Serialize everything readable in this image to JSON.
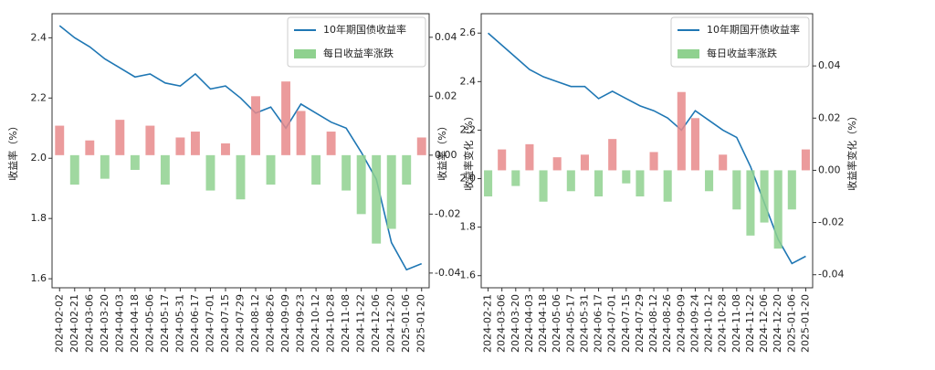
{
  "chart_data": [
    {
      "type": "combo",
      "ylabel": "收益率（%）",
      "y2label": "收益率变化（%）",
      "categories": [
        "2024-02-02",
        "2024-02-21",
        "2024-03-06",
        "2024-03-20",
        "2024-04-03",
        "2024-04-18",
        "2024-05-06",
        "2024-05-17",
        "2024-05-31",
        "2024-06-17",
        "2024-07-01",
        "2024-07-15",
        "2024-07-29",
        "2024-08-12",
        "2024-08-26",
        "2024-09-09",
        "2024-09-23",
        "2024-10-12",
        "2024-10-28",
        "2024-11-08",
        "2024-11-22",
        "2024-12-06",
        "2024-12-20",
        "2025-01-06",
        "2025-01-20"
      ],
      "series": [
        {
          "name": "10年期国债收益率",
          "color": "#1f77b4",
          "values": [
            2.44,
            2.4,
            2.37,
            2.33,
            2.3,
            2.27,
            2.28,
            2.25,
            2.24,
            2.28,
            2.23,
            2.24,
            2.2,
            2.15,
            2.17,
            2.1,
            2.18,
            2.15,
            2.12,
            2.1,
            2.02,
            1.93,
            1.72,
            1.63,
            1.65
          ]
        },
        {
          "name": "每日收益率涨跌",
          "axis": "y2",
          "up_color": "#e8898b",
          "down_color": "#8fd18f",
          "values": [
            0.01,
            -0.01,
            0.005,
            -0.008,
            0.012,
            -0.005,
            0.01,
            -0.01,
            0.006,
            0.008,
            -0.012,
            0.004,
            -0.015,
            0.02,
            -0.01,
            0.025,
            0.015,
            -0.01,
            0.008,
            -0.012,
            -0.02,
            -0.03,
            -0.025,
            -0.01,
            0.006
          ]
        }
      ],
      "ylim": [
        1.57,
        2.48
      ],
      "yticks": [
        1.6,
        1.8,
        {
          "value": 2.0,
          "label": "2.0"
        },
        2.2,
        2.4
      ],
      "y2lim": [
        -0.045,
        0.048
      ],
      "y2ticks": [
        {
          "value": -0.04,
          "label": "-0.04"
        },
        {
          "value": -0.02,
          "label": "-0.02"
        },
        {
          "value": 0,
          "label": "0.00"
        },
        {
          "value": 0.02,
          "label": "0.02"
        },
        {
          "value": 0.04,
          "label": "0.04"
        }
      ]
    },
    {
      "type": "combo",
      "ylabel": "收益率（%）",
      "y2label": "收益率变化（%）",
      "categories": [
        "2024-02-21",
        "2024-03-06",
        "2024-03-20",
        "2024-04-03",
        "2024-04-18",
        "2024-05-06",
        "2024-05-17",
        "2024-05-31",
        "2024-06-17",
        "2024-07-01",
        "2024-07-15",
        "2024-07-29",
        "2024-08-12",
        "2024-08-26",
        "2024-09-09",
        "2024-09-24",
        "2024-10-12",
        "2024-10-28",
        "2024-11-08",
        "2024-11-22",
        "2024-12-06",
        "2024-12-20",
        "2025-01-06",
        "2025-01-20"
      ],
      "series": [
        {
          "name": "10年期国开债收益率",
          "color": "#1f77b4",
          "values": [
            2.6,
            2.55,
            2.5,
            2.45,
            2.42,
            2.4,
            2.38,
            2.38,
            2.33,
            2.36,
            2.33,
            2.3,
            2.28,
            2.25,
            2.2,
            2.28,
            2.24,
            2.2,
            2.17,
            2.05,
            1.9,
            1.75,
            1.65,
            1.68
          ]
        },
        {
          "name": "每日收益率涨跌",
          "axis": "y2",
          "up_color": "#e8898b",
          "down_color": "#8fd18f",
          "values": [
            -0.01,
            0.008,
            -0.006,
            0.01,
            -0.012,
            0.005,
            -0.008,
            0.006,
            -0.01,
            0.012,
            -0.005,
            -0.01,
            0.007,
            -0.012,
            0.03,
            0.02,
            -0.008,
            0.006,
            -0.015,
            -0.025,
            -0.02,
            -0.03,
            -0.015,
            0.008
          ]
        }
      ],
      "ylim": [
        1.55,
        2.68
      ],
      "yticks": [
        1.6,
        1.8,
        {
          "value": 2.0,
          "label": "2.0"
        },
        2.2,
        2.4,
        2.6
      ],
      "y2lim": [
        -0.045,
        0.06
      ],
      "y2ticks": [
        {
          "value": -0.04,
          "label": "-0.04"
        },
        {
          "value": -0.02,
          "label": "-0.02"
        },
        {
          "value": 0,
          "label": "0.00"
        },
        {
          "value": 0.02,
          "label": "0.02"
        },
        {
          "value": 0.04,
          "label": "0.04"
        }
      ]
    }
  ]
}
